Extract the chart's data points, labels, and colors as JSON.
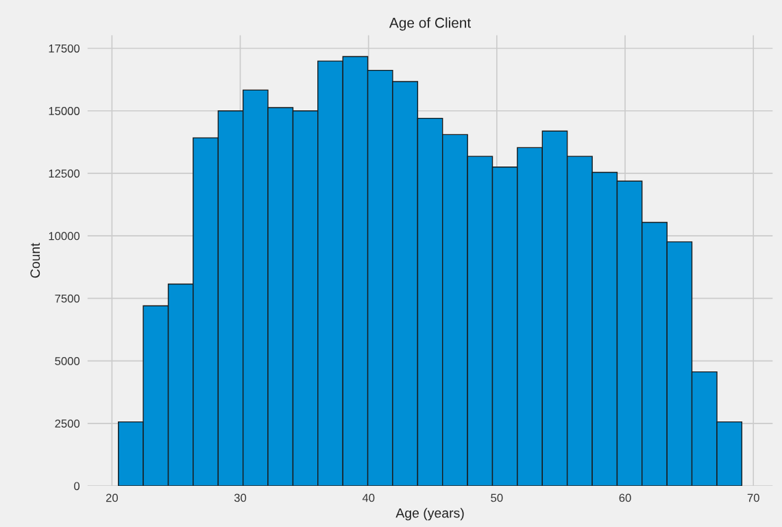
{
  "chart_data": {
    "type": "histogram",
    "title": "Age of Client",
    "xlabel": "Age (years)",
    "ylabel": "Count",
    "bins": [
      20.5,
      22.44,
      24.39,
      26.33,
      28.28,
      30.22,
      32.16,
      34.11,
      36.05,
      38.0,
      39.94,
      41.88,
      43.83,
      45.77,
      47.72,
      49.66,
      51.6,
      53.55,
      55.49,
      57.44,
      59.38,
      61.32,
      63.27,
      65.21,
      67.16,
      69.1
    ],
    "values": [
      2560,
      7200,
      8070,
      13920,
      15000,
      15830,
      15130,
      15000,
      16990,
      17170,
      16620,
      16170,
      14700,
      14050,
      13180,
      12750,
      13530,
      14190,
      13180,
      12540,
      12190,
      10540,
      9760,
      4560,
      2560
    ],
    "color": "#008fd5",
    "xlim": [
      18.1,
      71.5
    ],
    "ylim": [
      0,
      18020
    ],
    "xticks": [
      20,
      30,
      40,
      50,
      60,
      70
    ],
    "yticks": [
      0,
      2500,
      5000,
      7500,
      10000,
      12500,
      15000,
      17500
    ],
    "grid": true
  }
}
